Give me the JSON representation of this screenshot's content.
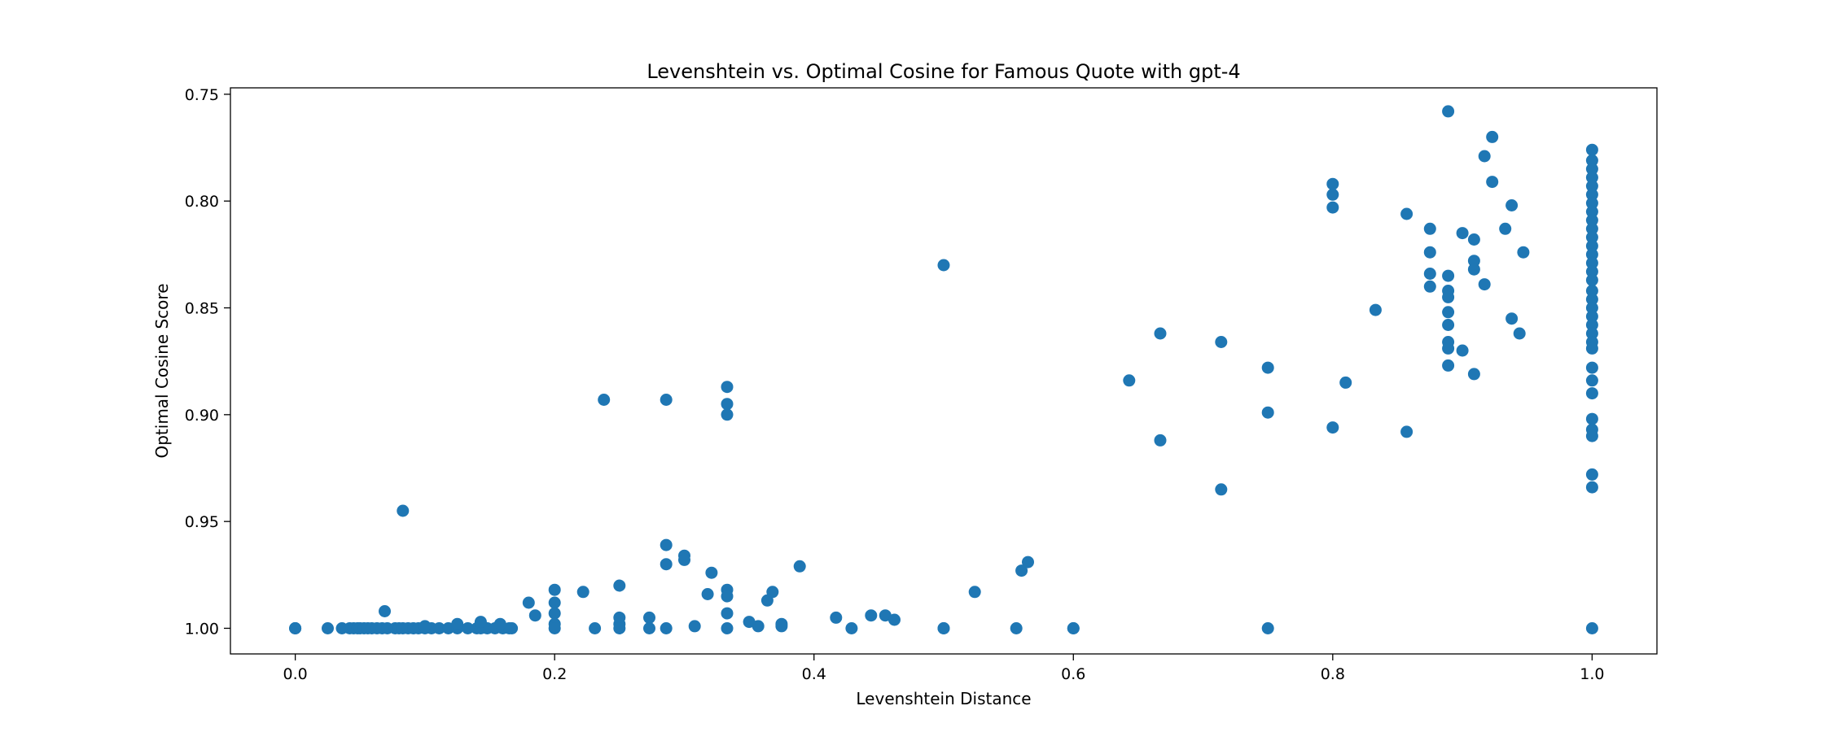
{
  "chart_data": {
    "type": "scatter",
    "title": "Levenshtein vs. Optimal Cosine for Famous Quote with gpt-4",
    "xlabel": "Levenshtein Distance",
    "ylabel": "Optimal Cosine Score",
    "xlim": [
      -0.05,
      1.05
    ],
    "ylim": [
      1.012,
      0.747
    ],
    "y_inverted": true,
    "grid": false,
    "legend": "none",
    "marker_color": "#1f77b4",
    "x_ticks": [
      "0.0",
      "0.2",
      "0.4",
      "0.6",
      "0.8",
      "1.0"
    ],
    "x_tick_values": [
      0.0,
      0.2,
      0.4,
      0.6,
      0.8,
      1.0
    ],
    "y_ticks": [
      "0.75",
      "0.80",
      "0.85",
      "0.90",
      "0.95",
      "1.00"
    ],
    "y_tick_values": [
      0.75,
      0.8,
      0.85,
      0.9,
      0.95,
      1.0
    ],
    "points": [
      [
        0.0,
        1.0
      ],
      [
        0.0,
        1.0
      ],
      [
        0.0,
        1.0
      ],
      [
        0.025,
        1.0
      ],
      [
        0.036,
        1.0
      ],
      [
        0.042,
        1.0
      ],
      [
        0.045,
        1.0
      ],
      [
        0.048,
        1.0
      ],
      [
        0.05,
        1.0
      ],
      [
        0.053,
        1.0
      ],
      [
        0.056,
        1.0
      ],
      [
        0.059,
        1.0
      ],
      [
        0.063,
        1.0
      ],
      [
        0.067,
        1.0
      ],
      [
        0.071,
        1.0
      ],
      [
        0.077,
        1.0
      ],
      [
        0.08,
        1.0
      ],
      [
        0.083,
        1.0
      ],
      [
        0.087,
        1.0
      ],
      [
        0.091,
        1.0
      ],
      [
        0.095,
        1.0
      ],
      [
        0.1,
        1.0
      ],
      [
        0.105,
        1.0
      ],
      [
        0.111,
        1.0
      ],
      [
        0.118,
        1.0
      ],
      [
        0.125,
        1.0
      ],
      [
        0.133,
        1.0
      ],
      [
        0.14,
        1.0
      ],
      [
        0.143,
        1.0
      ],
      [
        0.148,
        1.0
      ],
      [
        0.154,
        1.0
      ],
      [
        0.16,
        1.0
      ],
      [
        0.165,
        1.0
      ],
      [
        0.167,
        1.0
      ],
      [
        0.069,
        0.992
      ],
      [
        0.1,
        0.999
      ],
      [
        0.125,
        0.998
      ],
      [
        0.143,
        0.997
      ],
      [
        0.158,
        0.998
      ],
      [
        0.083,
        0.945
      ],
      [
        0.18,
        0.988
      ],
      [
        0.185,
        0.994
      ],
      [
        0.2,
        0.982
      ],
      [
        0.2,
        0.988
      ],
      [
        0.2,
        0.993
      ],
      [
        0.2,
        0.998
      ],
      [
        0.2,
        1.0
      ],
      [
        0.222,
        0.983
      ],
      [
        0.231,
        1.0
      ],
      [
        0.238,
        0.893
      ],
      [
        0.25,
        0.98
      ],
      [
        0.25,
        0.995
      ],
      [
        0.25,
        0.998
      ],
      [
        0.25,
        1.0
      ],
      [
        0.273,
        0.995
      ],
      [
        0.273,
        1.0
      ],
      [
        0.286,
        0.893
      ],
      [
        0.286,
        0.961
      ],
      [
        0.286,
        0.97
      ],
      [
        0.286,
        1.0
      ],
      [
        0.3,
        0.966
      ],
      [
        0.3,
        0.968
      ],
      [
        0.308,
        0.999
      ],
      [
        0.318,
        0.984
      ],
      [
        0.321,
        0.974
      ],
      [
        0.333,
        0.887
      ],
      [
        0.333,
        0.895
      ],
      [
        0.333,
        0.9
      ],
      [
        0.333,
        0.982
      ],
      [
        0.333,
        0.985
      ],
      [
        0.333,
        0.993
      ],
      [
        0.333,
        1.0
      ],
      [
        0.35,
        0.997
      ],
      [
        0.357,
        0.999
      ],
      [
        0.364,
        0.987
      ],
      [
        0.368,
        0.983
      ],
      [
        0.375,
        0.998
      ],
      [
        0.375,
        0.999
      ],
      [
        0.389,
        0.971
      ],
      [
        0.417,
        0.995
      ],
      [
        0.429,
        1.0
      ],
      [
        0.444,
        0.994
      ],
      [
        0.455,
        0.994
      ],
      [
        0.462,
        0.996
      ],
      [
        0.5,
        0.83
      ],
      [
        0.5,
        1.0
      ],
      [
        0.5,
        1.0
      ],
      [
        0.524,
        0.983
      ],
      [
        0.556,
        1.0
      ],
      [
        0.56,
        0.973
      ],
      [
        0.565,
        0.969
      ],
      [
        0.6,
        1.0
      ],
      [
        0.6,
        1.0
      ],
      [
        0.643,
        0.884
      ],
      [
        0.667,
        0.862
      ],
      [
        0.667,
        0.912
      ],
      [
        0.714,
        0.866
      ],
      [
        0.714,
        0.935
      ],
      [
        0.75,
        0.878
      ],
      [
        0.75,
        0.899
      ],
      [
        0.75,
        1.0
      ],
      [
        0.8,
        0.792
      ],
      [
        0.8,
        0.797
      ],
      [
        0.8,
        0.803
      ],
      [
        0.8,
        0.906
      ],
      [
        0.81,
        0.885
      ],
      [
        0.833,
        0.851
      ],
      [
        0.857,
        0.806
      ],
      [
        0.857,
        0.908
      ],
      [
        0.875,
        0.813
      ],
      [
        0.875,
        0.824
      ],
      [
        0.875,
        0.834
      ],
      [
        0.875,
        0.84
      ],
      [
        0.889,
        0.758
      ],
      [
        0.889,
        0.835
      ],
      [
        0.889,
        0.842
      ],
      [
        0.889,
        0.845
      ],
      [
        0.889,
        0.852
      ],
      [
        0.889,
        0.858
      ],
      [
        0.889,
        0.866
      ],
      [
        0.889,
        0.869
      ],
      [
        0.889,
        0.877
      ],
      [
        0.9,
        0.815
      ],
      [
        0.9,
        0.87
      ],
      [
        0.909,
        0.818
      ],
      [
        0.909,
        0.828
      ],
      [
        0.909,
        0.832
      ],
      [
        0.909,
        0.881
      ],
      [
        0.917,
        0.779
      ],
      [
        0.917,
        0.839
      ],
      [
        0.923,
        0.77
      ],
      [
        0.923,
        0.791
      ],
      [
        0.933,
        0.813
      ],
      [
        0.938,
        0.802
      ],
      [
        0.938,
        0.855
      ],
      [
        0.944,
        0.862
      ],
      [
        0.947,
        0.824
      ],
      [
        1.0,
        0.776
      ],
      [
        1.0,
        0.781
      ],
      [
        1.0,
        0.785
      ],
      [
        1.0,
        0.789
      ],
      [
        1.0,
        0.793
      ],
      [
        1.0,
        0.797
      ],
      [
        1.0,
        0.801
      ],
      [
        1.0,
        0.805
      ],
      [
        1.0,
        0.809
      ],
      [
        1.0,
        0.813
      ],
      [
        1.0,
        0.817
      ],
      [
        1.0,
        0.821
      ],
      [
        1.0,
        0.825
      ],
      [
        1.0,
        0.829
      ],
      [
        1.0,
        0.833
      ],
      [
        1.0,
        0.837
      ],
      [
        1.0,
        0.842
      ],
      [
        1.0,
        0.846
      ],
      [
        1.0,
        0.85
      ],
      [
        1.0,
        0.854
      ],
      [
        1.0,
        0.858
      ],
      [
        1.0,
        0.862
      ],
      [
        1.0,
        0.866
      ],
      [
        1.0,
        0.869
      ],
      [
        1.0,
        0.878
      ],
      [
        1.0,
        0.884
      ],
      [
        1.0,
        0.89
      ],
      [
        1.0,
        0.902
      ],
      [
        1.0,
        0.907
      ],
      [
        1.0,
        0.91
      ],
      [
        1.0,
        0.928
      ],
      [
        1.0,
        0.934
      ],
      [
        1.0,
        1.0
      ]
    ]
  }
}
